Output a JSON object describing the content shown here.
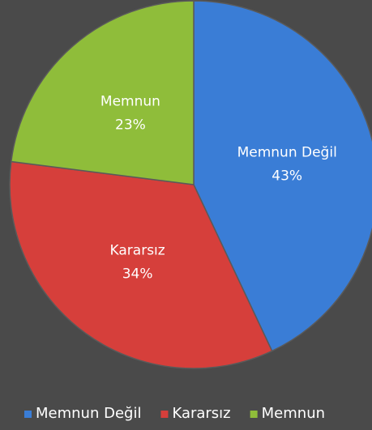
{
  "chart_data": {
    "type": "pie",
    "categories": [
      "Memnun Değil",
      "Kararsız",
      "Memnun"
    ],
    "values": [
      43,
      34,
      23
    ],
    "value_labels": [
      "43%",
      "34%",
      "23%"
    ],
    "colors": [
      "#3a7dd6",
      "#d63f3b",
      "#8fbd3a"
    ],
    "legend": "bottom"
  }
}
